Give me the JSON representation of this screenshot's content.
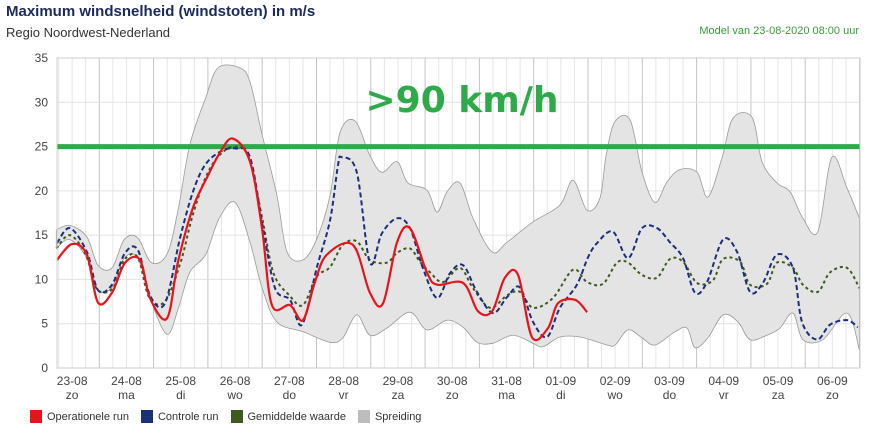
{
  "header": {
    "title": "Maximum windsnelheid (windstoten) in m/s",
    "subtitle": "Regio Noordwest-Nederland",
    "model_run": "Model van 23-08-2020 08:00 uur"
  },
  "chart_data": {
    "type": "line",
    "title": "Maximum windsnelheid (windstoten) in m/s",
    "ylabel": "m/s",
    "xlabel": "",
    "x_unit": "hours since 23-08 00:00",
    "xlim": [
      5,
      360
    ],
    "ylim": [
      0,
      35
    ],
    "yticks": [
      0,
      5,
      10,
      15,
      20,
      25,
      30,
      35
    ],
    "grid": true,
    "legend_position": "bottom-left",
    "xtick_labels": [
      {
        "date": "23-08",
        "day": "zo"
      },
      {
        "date": "24-08",
        "day": "ma"
      },
      {
        "date": "25-08",
        "day": "di"
      },
      {
        "date": "26-08",
        "day": "wo"
      },
      {
        "date": "27-08",
        "day": "do"
      },
      {
        "date": "28-08",
        "day": "vr"
      },
      {
        "date": "29-08",
        "day": "za"
      },
      {
        "date": "30-08",
        "day": "zo"
      },
      {
        "date": "31-08",
        "day": "ma"
      },
      {
        "date": "01-09",
        "day": "di"
      },
      {
        "date": "02-09",
        "day": "wo"
      },
      {
        "date": "03-09",
        "day": "do"
      },
      {
        "date": "04-09",
        "day": "vr"
      },
      {
        "date": "05-09",
        "day": "za"
      },
      {
        "date": "06-09",
        "day": "zo"
      }
    ],
    "threshold": {
      "value": 25,
      "label": ">90 km/h",
      "color": "#2eaa4a"
    },
    "spread": {
      "name": "Spreiding",
      "color": "#c8c8c8",
      "upper": [
        [
          5,
          15.6
        ],
        [
          11,
          16.1
        ],
        [
          18.5,
          14.8
        ],
        [
          23.4,
          11.6
        ],
        [
          29.6,
          11.3
        ],
        [
          35,
          14.5
        ],
        [
          41,
          14.7
        ],
        [
          47,
          11.9
        ],
        [
          54,
          12.9
        ],
        [
          59,
          18.1
        ],
        [
          64,
          25.2
        ],
        [
          71,
          30.5
        ],
        [
          76.5,
          33.9
        ],
        [
          86,
          33.9
        ],
        [
          90.6,
          32.3
        ],
        [
          96,
          26.3
        ],
        [
          102.5,
          19.5
        ],
        [
          107,
          13.1
        ],
        [
          114,
          12.2
        ],
        [
          120,
          14.5
        ],
        [
          126,
          19.5
        ],
        [
          130.4,
          26.6
        ],
        [
          137,
          27.9
        ],
        [
          143.6,
          24.0
        ],
        [
          148.9,
          22.1
        ],
        [
          155.6,
          23.3
        ],
        [
          160.4,
          20.9
        ],
        [
          168.8,
          20.1
        ],
        [
          173.3,
          17.6
        ],
        [
          177.7,
          19.9
        ],
        [
          183.4,
          20.9
        ],
        [
          189.2,
          16.9
        ],
        [
          197.6,
          13.1
        ],
        [
          204.2,
          14.2
        ],
        [
          215.7,
          16.5
        ],
        [
          227.6,
          18.4
        ],
        [
          233.4,
          21.2
        ],
        [
          239.6,
          17.8
        ],
        [
          245.3,
          19.2
        ],
        [
          248,
          24
        ],
        [
          251.9,
          27.8
        ],
        [
          258.6,
          28.0
        ],
        [
          263.9,
          22.1
        ],
        [
          269.6,
          18.7
        ],
        [
          274.9,
          21.0
        ],
        [
          280.6,
          22.4
        ],
        [
          288.2,
          22.1
        ],
        [
          293,
          19.3
        ],
        [
          299.2,
          23.7
        ],
        [
          304.1,
          28.2
        ],
        [
          312.5,
          28.3
        ],
        [
          316.9,
          23.3
        ],
        [
          323.5,
          20.9
        ],
        [
          329.3,
          19.9
        ],
        [
          335,
          16.9
        ],
        [
          341.6,
          15.4
        ],
        [
          347.8,
          23.8
        ],
        [
          354.5,
          20.3
        ],
        [
          360,
          16.9
        ]
      ],
      "lower": [
        [
          5,
          13.5
        ],
        [
          11,
          14.5
        ],
        [
          18.5,
          12.4
        ],
        [
          23.4,
          8.8
        ],
        [
          29.6,
          9.1
        ],
        [
          35,
          12.4
        ],
        [
          41,
          12.4
        ],
        [
          47,
          7.5
        ],
        [
          54,
          3.8
        ],
        [
          59,
          6.8
        ],
        [
          64,
          10.8
        ],
        [
          71,
          12.8
        ],
        [
          77,
          16.9
        ],
        [
          84,
          18.7
        ],
        [
          90.6,
          14.2
        ],
        [
          96,
          9.0
        ],
        [
          102.5,
          5.2
        ],
        [
          114,
          4.1
        ],
        [
          126,
          2.9
        ],
        [
          131.6,
          3.4
        ],
        [
          137.8,
          6.0
        ],
        [
          143.6,
          3.7
        ],
        [
          151.1,
          4.5
        ],
        [
          161.3,
          6.3
        ],
        [
          168.8,
          4.3
        ],
        [
          177.7,
          5.4
        ],
        [
          184.8,
          4.6
        ],
        [
          191,
          2.9
        ],
        [
          198,
          2.8
        ],
        [
          206.8,
          3.7
        ],
        [
          215.7,
          2.8
        ],
        [
          220.1,
          2.4
        ],
        [
          227.6,
          3.5
        ],
        [
          236.5,
          3.5
        ],
        [
          248.4,
          2.6
        ],
        [
          252,
          2.6
        ],
        [
          257.7,
          4.3
        ],
        [
          263.9,
          3.4
        ],
        [
          269.6,
          2.6
        ],
        [
          278.5,
          4.1
        ],
        [
          283.8,
          4.5
        ],
        [
          287.3,
          2.3
        ],
        [
          293,
          3.4
        ],
        [
          299.7,
          6.0
        ],
        [
          306.3,
          5.2
        ],
        [
          311.6,
          3.2
        ],
        [
          319.1,
          3.7
        ],
        [
          324.8,
          4.5
        ],
        [
          330.6,
          6.2
        ],
        [
          335,
          3.2
        ],
        [
          343.8,
          3.2
        ],
        [
          354.5,
          6.2
        ],
        [
          360,
          2.0
        ]
      ]
    },
    "series": [
      {
        "name": "Gemiddelde waarde",
        "color": "#3f5a1e",
        "dash": "3,3",
        "points": [
          [
            5,
            13.5
          ],
          [
            11,
            15.0
          ],
          [
            18,
            12.8
          ],
          [
            23,
            8.9
          ],
          [
            30,
            9.0
          ],
          [
            35,
            12.2
          ],
          [
            41,
            12.5
          ],
          [
            46,
            8.0
          ],
          [
            53,
            7.5
          ],
          [
            60,
            12.0
          ],
          [
            65,
            17
          ],
          [
            71,
            21.5
          ],
          [
            77,
            24
          ],
          [
            84,
            25
          ],
          [
            90,
            23.8
          ],
          [
            96,
            16.9
          ],
          [
            101,
            10.7
          ],
          [
            108,
            8.2
          ],
          [
            114,
            7.1
          ],
          [
            120,
            10.3
          ],
          [
            126,
            11.4
          ],
          [
            131.6,
            13.9
          ],
          [
            137.8,
            14.3
          ],
          [
            143.6,
            12.2
          ],
          [
            151.1,
            11.9
          ],
          [
            155.6,
            13.0
          ],
          [
            161.3,
            13.5
          ],
          [
            165.7,
            12.0
          ],
          [
            170.2,
            10.8
          ],
          [
            175.9,
            9.7
          ],
          [
            183.4,
            11.3
          ],
          [
            189.2,
            9.0
          ],
          [
            196.7,
            6.8
          ],
          [
            204.2,
            8.2
          ],
          [
            209.9,
            8.6
          ],
          [
            215.7,
            6.8
          ],
          [
            224.5,
            7.9
          ],
          [
            233.4,
            11.1
          ],
          [
            239.6,
            9.7
          ],
          [
            246.6,
            9.5
          ],
          [
            252.8,
            11.9
          ],
          [
            257.7,
            11.9
          ],
          [
            263.9,
            10.5
          ],
          [
            270.5,
            10.2
          ],
          [
            276.2,
            12.3
          ],
          [
            282,
            12.0
          ],
          [
            288.2,
            9.6
          ],
          [
            295.2,
            9.9
          ],
          [
            299.7,
            12.3
          ],
          [
            307.2,
            12.0
          ],
          [
            311.6,
            9.4
          ],
          [
            319.1,
            9.5
          ],
          [
            323.5,
            11.9
          ],
          [
            330.6,
            11.3
          ],
          [
            335,
            9.4
          ],
          [
            341.6,
            8.6
          ],
          [
            347,
            10.8
          ],
          [
            354.5,
            11.3
          ],
          [
            360,
            9.0
          ]
        ]
      },
      {
        "name": "Controle run",
        "color": "#1b2f7a",
        "dash": "5,3",
        "points": [
          [
            5.3,
            14.1
          ],
          [
            11,
            15.8
          ],
          [
            18.5,
            13.1
          ],
          [
            23.4,
            8.8
          ],
          [
            29.6,
            9.4
          ],
          [
            35.4,
            13.0
          ],
          [
            41.1,
            13.3
          ],
          [
            46.4,
            8.2
          ],
          [
            53,
            7.3
          ],
          [
            59.7,
            14.7
          ],
          [
            65.4,
            19.9
          ],
          [
            70.7,
            22.9
          ],
          [
            77.3,
            24.4
          ],
          [
            84,
            24.8
          ],
          [
            90.6,
            23.8
          ],
          [
            96.4,
            15.8
          ],
          [
            101.7,
            9.0
          ],
          [
            108.3,
            7.7
          ],
          [
            113.6,
            4.9
          ],
          [
            120.2,
            11.4
          ],
          [
            126,
            16.7
          ],
          [
            129.5,
            22.9
          ],
          [
            131.2,
            23.8
          ],
          [
            137.8,
            22.1
          ],
          [
            143.6,
            11.9
          ],
          [
            148.9,
            15.2
          ],
          [
            155.6,
            16.9
          ],
          [
            161.3,
            15.8
          ],
          [
            167,
            11.3
          ],
          [
            173.3,
            7.9
          ],
          [
            179,
            10.7
          ],
          [
            184.8,
            11.6
          ],
          [
            190.9,
            8.6
          ],
          [
            198,
            6.2
          ],
          [
            204.2,
            8.0
          ],
          [
            209.9,
            9.1
          ],
          [
            215.7,
            5.2
          ],
          [
            221.9,
            3.5
          ],
          [
            227.6,
            6.8
          ],
          [
            235.1,
            9.4
          ],
          [
            240,
            12.5
          ],
          [
            244,
            14.1
          ],
          [
            251,
            15.4
          ],
          [
            257.7,
            12.4
          ],
          [
            263.9,
            15.8
          ],
          [
            270.5,
            15.8
          ],
          [
            276.2,
            14.2
          ],
          [
            282,
            12.4
          ],
          [
            287.3,
            8.5
          ],
          [
            292.6,
            9.7
          ],
          [
            299.7,
            14.5
          ],
          [
            305.9,
            13.1
          ],
          [
            311.6,
            8.6
          ],
          [
            317.3,
            9.6
          ],
          [
            323.5,
            12.8
          ],
          [
            330.6,
            11.3
          ],
          [
            334.6,
            5.2
          ],
          [
            341.2,
            3.2
          ],
          [
            347,
            4.9
          ],
          [
            354.5,
            5.4
          ],
          [
            359.3,
            4.6
          ]
        ]
      },
      {
        "name": "Operationele run",
        "color": "#e8141b",
        "dash": "",
        "points": [
          [
            5.3,
            12.2
          ],
          [
            12,
            14.0
          ],
          [
            18.5,
            12.8
          ],
          [
            23.4,
            7.4
          ],
          [
            29.6,
            8.5
          ],
          [
            35.4,
            11.9
          ],
          [
            42,
            12.2
          ],
          [
            46.4,
            7.9
          ],
          [
            53.9,
            5.6
          ],
          [
            58.8,
            12.0
          ],
          [
            65.4,
            18.1
          ],
          [
            71.6,
            21.5
          ],
          [
            77.3,
            24.3
          ],
          [
            83,
            25.9
          ],
          [
            90.6,
            23.3
          ],
          [
            95.9,
            15.8
          ],
          [
            100.3,
            7.1
          ],
          [
            108.3,
            7.1
          ],
          [
            114,
            5.4
          ],
          [
            119.3,
            9.7
          ],
          [
            124.6,
            12.8
          ],
          [
            136.1,
            13.9
          ],
          [
            143.6,
            8.5
          ],
          [
            149.4,
            7.3
          ],
          [
            155.6,
            14.2
          ],
          [
            161.3,
            15.8
          ],
          [
            168.8,
            10.8
          ],
          [
            173.3,
            9.4
          ],
          [
            184.8,
            9.6
          ],
          [
            191.4,
            6.4
          ],
          [
            197.6,
            6.4
          ],
          [
            203.3,
            10.2
          ],
          [
            209.1,
            10.5
          ],
          [
            215.2,
            3.5
          ],
          [
            222.3,
            4.5
          ],
          [
            226.7,
            7.3
          ],
          [
            234.3,
            7.7
          ],
          [
            239.6,
            6.3
          ]
        ]
      }
    ]
  },
  "legend": [
    {
      "label": "Operationele run",
      "color": "#e8141b"
    },
    {
      "label": "Controle run",
      "color": "#1b2f7a"
    },
    {
      "label": "Gemiddelde waarde",
      "color": "#3f5a1e"
    },
    {
      "label": "Spreiding",
      "color": "#bdbdbd"
    }
  ]
}
